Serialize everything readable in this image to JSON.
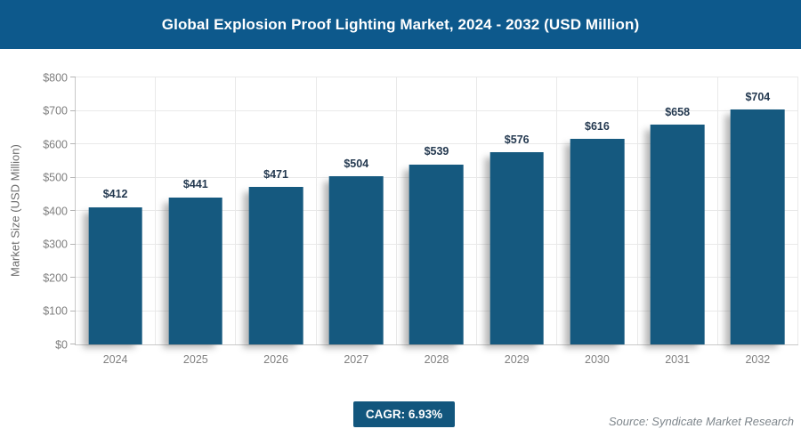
{
  "header": {
    "title": "Global Explosion Proof Lighting Market, 2024 - 2032 (USD Million)"
  },
  "chart_data": {
    "type": "bar",
    "title": "Global Explosion Proof Lighting Market, 2024 - 2032 (USD Million)",
    "categories": [
      "2024",
      "2025",
      "2026",
      "2027",
      "2028",
      "2029",
      "2030",
      "2031",
      "2032"
    ],
    "values": [
      412,
      441,
      471,
      504,
      539,
      576,
      616,
      658,
      704
    ],
    "value_labels": [
      "$412",
      "$441",
      "$471",
      "$504",
      "$539",
      "$576",
      "$616",
      "$658",
      "$704"
    ],
    "xlabel": "",
    "ylabel": "Market Size (USD Million)",
    "ylim": [
      0,
      800
    ],
    "ytick_step": 100,
    "ytick_labels": [
      "$0",
      "$100",
      "$200",
      "$300",
      "$400",
      "$500",
      "$600",
      "$700",
      "$800"
    ],
    "grid": true,
    "legend": "none",
    "bar_color": "#15597f"
  },
  "footer": {
    "cagr_label": "CAGR: 6.93%",
    "source": "Source: Syndicate Market Research"
  },
  "colors": {
    "header_bg": "#0d598c",
    "bar": "#15597f",
    "value_label": "#243950",
    "axis_text": "#7f7f7f",
    "gridline": "#e9e9e9",
    "axis_line": "#c8c8c8",
    "badge_bg": "#12567d",
    "source_text": "#7e868c"
  }
}
